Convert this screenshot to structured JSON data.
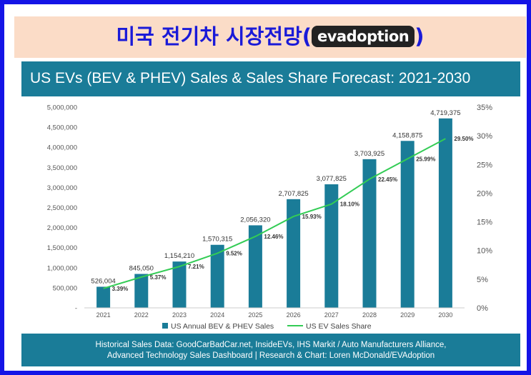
{
  "banner": {
    "korean_title": "미국 전기차 시장전망",
    "open_paren": "(",
    "close_paren": ")",
    "logo_text": "evadoption"
  },
  "colors": {
    "frame": "#1414e6",
    "banner_bg": "#fbdcc7",
    "banner_text": "#1a1ad8",
    "header_bg": "#1a7c98",
    "bar": "#1a7c98",
    "line": "#33cc55"
  },
  "chart_data": {
    "type": "bar",
    "title": "US EVs (BEV & PHEV) Sales & Sales Share Forecast: 2021-2030",
    "categories": [
      "2021",
      "2022",
      "2023",
      "2024",
      "2025",
      "2026",
      "2027",
      "2028",
      "2029",
      "2030"
    ],
    "series": [
      {
        "name": "US Annual BEV & PHEV Sales",
        "type": "bar",
        "axis": "left",
        "values": [
          526004,
          845050,
          1154210,
          1570315,
          2056320,
          2707825,
          3077825,
          3703925,
          4158875,
          4719375
        ],
        "labels": [
          "526,004",
          "845,050",
          "1,154,210",
          "1,570,315",
          "2,056,320",
          "2,707,825",
          "3,077,825",
          "3,703,925",
          "4,158,875",
          "4,719,375"
        ]
      },
      {
        "name": "US EV Sales Share",
        "type": "line",
        "axis": "right",
        "values": [
          3.39,
          5.37,
          7.21,
          9.52,
          12.46,
          15.93,
          18.1,
          22.45,
          25.99,
          29.5
        ],
        "labels": [
          "3.39%",
          "5.37%",
          "7.21%",
          "9.52%",
          "12.46%",
          "15.93%",
          "18.10%",
          "22.45%",
          "25.99%",
          "29.50%"
        ]
      }
    ],
    "y_left": {
      "range": [
        0,
        5000000
      ],
      "ticks": [
        0,
        500000,
        1000000,
        1500000,
        2000000,
        2500000,
        3000000,
        3500000,
        4000000,
        4500000,
        5000000
      ],
      "tick_labels": [
        "-",
        "500,000",
        "1,000,000",
        "1,500,000",
        "2,000,000",
        "2,500,000",
        "3,000,000",
        "3,500,000",
        "4,000,000",
        "4,500,000",
        "5,000,000"
      ]
    },
    "y_right": {
      "range": [
        0,
        35
      ],
      "ticks": [
        0,
        5,
        10,
        15,
        20,
        25,
        30,
        35
      ],
      "tick_labels": [
        "0%",
        "5%",
        "10%",
        "15%",
        "20%",
        "25%",
        "30%",
        "35%"
      ]
    },
    "grid": false,
    "legend_position": "bottom"
  },
  "footer": {
    "line1": "Historical Sales Data: GoodCarBadCar.net, InsideEVs, IHS Markit / Auto Manufacturers Alliance,",
    "line2": "Advanced Technology Sales Dashboard | Research & Chart: Loren McDonald/EVAdoption"
  }
}
